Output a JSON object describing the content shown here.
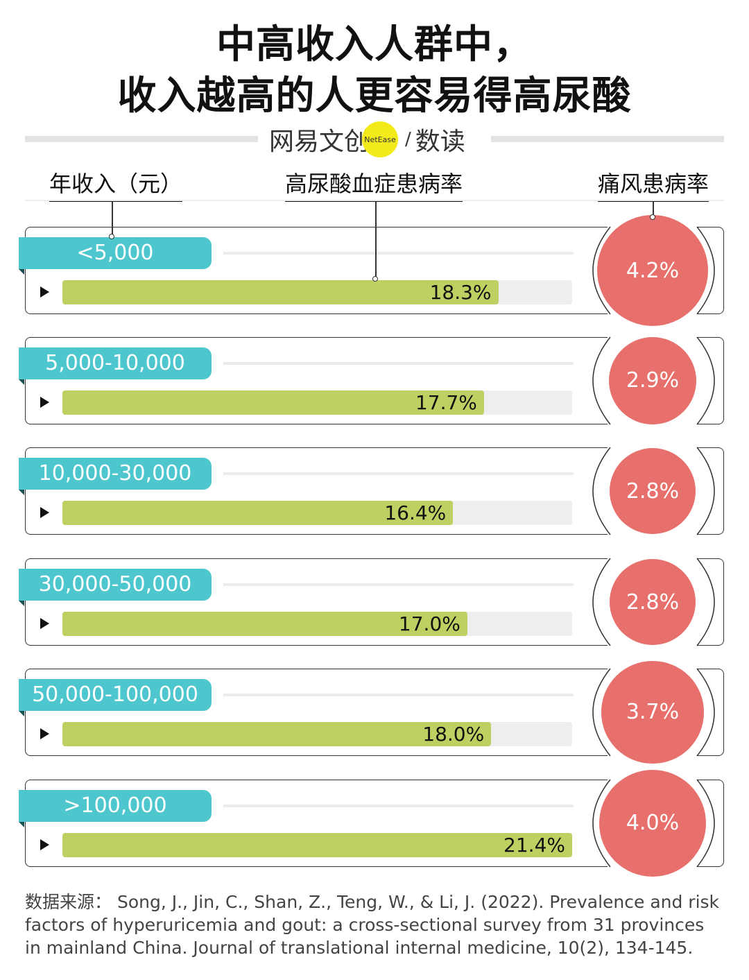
{
  "title_line1": "中高收入人群中，",
  "title_line2": "收入越高的人更容易得高尿酸",
  "brand": {
    "name": "网易文创",
    "badge": "NetEase",
    "slash": "/",
    "sub": "数读"
  },
  "headers": {
    "income": "年收入（元）",
    "hyperuricemia": "高尿酸血症患病率",
    "gout": "痛风患病率"
  },
  "chart_data": {
    "type": "bar",
    "categories": [
      "<5,000",
      "5,000-10,000",
      "10,000-30,000",
      "30,000-50,000",
      "50,000-100,000",
      ">100,000"
    ],
    "series": [
      {
        "name": "高尿酸血症患病率",
        "values": [
          18.3,
          17.7,
          16.4,
          17.0,
          18.0,
          21.4
        ],
        "labels": [
          "18.3%",
          "17.7%",
          "16.4%",
          "17.0%",
          "18.0%",
          "21.4%"
        ]
      },
      {
        "name": "痛风患病率",
        "values": [
          4.2,
          2.9,
          2.8,
          2.8,
          3.7,
          4.0
        ],
        "labels": [
          "4.2%",
          "2.9%",
          "2.8%",
          "2.8%",
          "3.7%",
          "4.0%"
        ]
      }
    ],
    "xlim": [
      0,
      21.4
    ],
    "colors": {
      "category_tag": "#4dc7cd",
      "bar": "#c0cf62",
      "circle": "#e8706c"
    }
  },
  "source": "数据来源： Song, J., Jin, C., Shan, Z., Teng, W., & Li, J. (2022). Prevalence and risk factors of hyperuricemia and gout: a cross-sectional survey from 31 provinces in mainland China. Journal of translational internal medicine, 10(2), 134-145."
}
